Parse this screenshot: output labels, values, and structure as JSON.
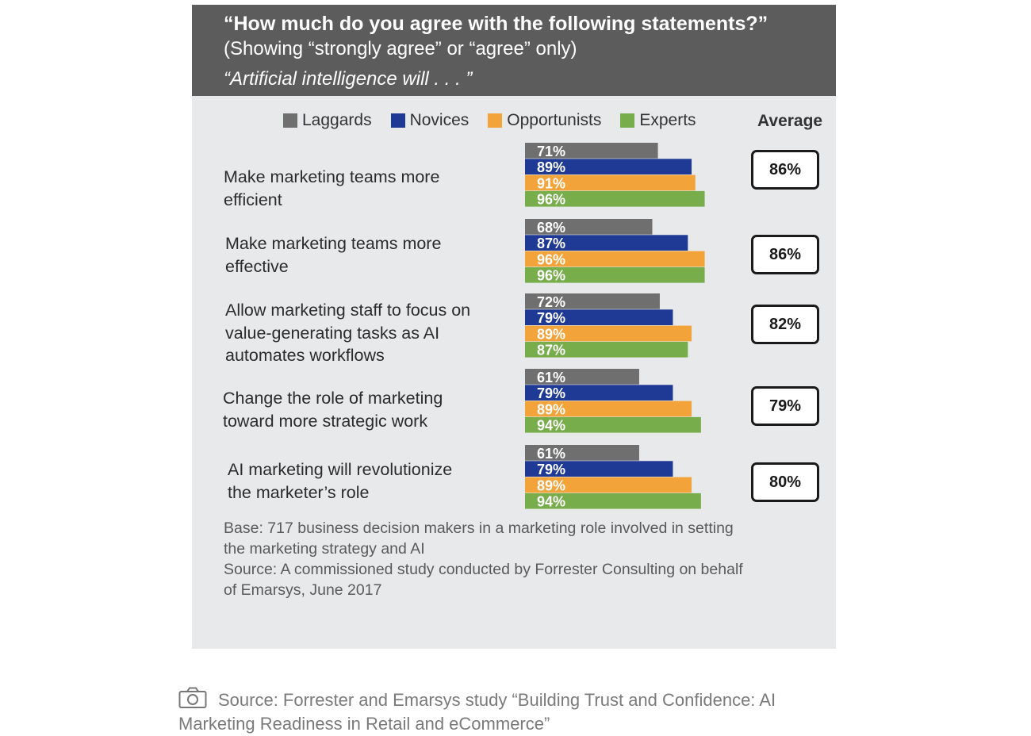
{
  "header": {
    "title": "“How much do you agree with the following statements?”",
    "subtitle": "(Showing “strongly agree” or “agree” only)",
    "lead": "“Artificial intelligence will . . . ”"
  },
  "average_header": "Average",
  "colors": {
    "Laggards": "#6f6f6f",
    "Novices": "#1e3a94",
    "Opportunists": "#f2a33a",
    "Experts": "#77ad4b",
    "header_bg": "#5c5c5c",
    "panel_bg": "#e7e9eb"
  },
  "chart_data": {
    "type": "bar",
    "orientation": "horizontal",
    "categories": [
      "Make marketing teams more\nefficient",
      "Make marketing teams more\neffective",
      "Allow marketing staff to focus on\nvalue-generating tasks as AI\nautomates workflows",
      "Change the role of marketing\ntoward more strategic work",
      "AI marketing will revolutionize\nthe marketer’s role"
    ],
    "series": [
      {
        "name": "Laggards",
        "values": [
          71,
          68,
          72,
          61,
          61
        ],
        "labels": [
          "71%",
          "68%",
          "72%",
          "61%",
          "61%"
        ]
      },
      {
        "name": "Novices",
        "values": [
          89,
          87,
          79,
          79,
          79
        ],
        "labels": [
          "89%",
          "87%",
          "79%",
          "79%",
          "79%"
        ]
      },
      {
        "name": "Opportunists",
        "values": [
          91,
          96,
          89,
          89,
          89
        ],
        "labels": [
          "91%",
          "96%",
          "89%",
          "89%",
          "89%"
        ]
      },
      {
        "name": "Experts",
        "values": [
          96,
          96,
          87,
          94,
          94
        ],
        "labels": [
          "96%",
          "96%",
          "87%",
          "94%",
          "94%"
        ]
      }
    ],
    "averages": [
      "86%",
      "86%",
      "82%",
      "79%",
      "80%"
    ],
    "unit": "%",
    "xlim": [
      0,
      100
    ],
    "legend": "top",
    "grid": false
  },
  "notes": {
    "base": "Base: 717 business decision makers in a marketing role involved in setting\nthe marketing strategy and AI",
    "source": "Source: A commissioned study conducted by Forrester Consulting on behalf\nof Emarsys, June 2017"
  },
  "caption": {
    "icon": "camera-icon",
    "text": "Source: Forrester and Emarsys study “Building Trust and Confidence: AI Marketing Readiness in Retail and eCommerce”"
  }
}
